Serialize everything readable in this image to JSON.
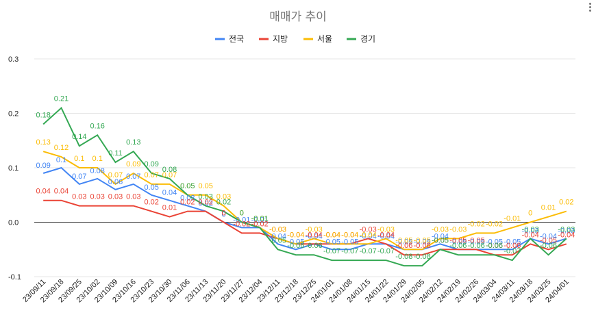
{
  "menu_icon": "more-vert-icon",
  "chart_data": {
    "type": "line",
    "title": "매매가 추이",
    "legend_position": "top",
    "grid": true,
    "ylim": [
      -0.1,
      0.3
    ],
    "yticks": [
      "0.3",
      "0.2",
      "0.1",
      "0.0",
      "-0.1"
    ],
    "ytick_values": [
      0.3,
      0.2,
      0.1,
      0.0,
      -0.1
    ],
    "categories": [
      "23/09/11",
      "23/09/18",
      "23/09/25",
      "23/10/02",
      "23/10/09",
      "23/10/16",
      "23/10/23",
      "23/10/30",
      "23/11/06",
      "23/11/13",
      "23/11/20",
      "23/11/27",
      "23/12/04",
      "23/12/11",
      "23/12/18",
      "23/12/25",
      "24/01/01",
      "24/01/08",
      "24/01/15",
      "24/01/22",
      "24/01/29",
      "24/02/05",
      "24/02/12",
      "24/02/19",
      "24/02/26",
      "24/03/04",
      "24/03/11",
      "24/03/18",
      "24/03/25",
      "24/04/01"
    ],
    "series": [
      {
        "name": "전국",
        "color": "#4285f4",
        "values": [
          0.09,
          0.1,
          0.07,
          0.08,
          0.06,
          0.07,
          0.05,
          0.04,
          0.03,
          0.02,
          0,
          -0.01,
          -0.01,
          -0.04,
          -0.05,
          -0.04,
          -0.05,
          -0.05,
          -0.04,
          -0.04,
          -0.05,
          -0.05,
          -0.04,
          -0.05,
          -0.05,
          -0.05,
          -0.05,
          -0.03,
          -0.04,
          -0.03
        ],
        "labels": [
          "0.09",
          "0.1",
          "0.07",
          "0.08",
          "0.06",
          "0.07",
          "0.05",
          "0.04",
          "0.03",
          "0.02",
          "0",
          "-0.01",
          "-0.01",
          "-0.04",
          "-0.05",
          "-0.04",
          "-0.05",
          "-0.05",
          "-0.04",
          "-0.04",
          "-0.05",
          "-0.05",
          "-0.04",
          "-0.05",
          "-0.05",
          "-0.05",
          "-0.05",
          "-0.03",
          "-0.04",
          "-0.03"
        ]
      },
      {
        "name": "지방",
        "color": "#ea4335",
        "values": [
          0.04,
          0.04,
          0.03,
          0.03,
          0.03,
          0.03,
          0.02,
          0.01,
          0.02,
          0.02,
          0,
          -0.02,
          -0.02,
          -0.03,
          -0.04,
          -0.04,
          -0.04,
          -0.04,
          -0.03,
          -0.04,
          -0.06,
          -0.06,
          -0.05,
          -0.05,
          -0.05,
          -0.06,
          -0.06,
          -0.04,
          -0.05,
          -0.04
        ],
        "labels": [
          "0.04",
          "0.04",
          "0.03",
          "0.03",
          "0.03",
          "0.03",
          "0.02",
          "0.01",
          "0.02",
          "0.02",
          "0",
          "-0.02",
          "-0.02",
          "-0.03",
          "-0.04",
          "-0.04",
          "-0.04",
          "-0.04",
          "-0.03",
          "-0.04",
          "-0.06",
          "-0.06",
          "-0.05",
          "-0.05",
          "-0.05",
          "-0.06",
          "-0.06",
          "-0.04",
          "-0.05",
          "-0.04"
        ]
      },
      {
        "name": "서울",
        "color": "#fbbc04",
        "values": [
          0.13,
          0.12,
          0.1,
          0.1,
          0.07,
          0.09,
          0.07,
          0.07,
          0.05,
          0.05,
          0.03,
          0,
          -0.01,
          -0.03,
          -0.04,
          -0.03,
          -0.04,
          -0.04,
          -0.04,
          -0.03,
          -0.05,
          -0.05,
          -0.03,
          -0.03,
          -0.02,
          -0.02,
          -0.01,
          0,
          0.01,
          0.02
        ],
        "labels": [
          "0.13",
          "0.12",
          "0.1",
          "0.1",
          "0.07",
          "0.09",
          "0.07",
          "0.07",
          "0.05",
          "0.05",
          "0.03",
          "0",
          "-0.01",
          "-0.03",
          "-0.04",
          "-0.03",
          "-0.04",
          "-0.04",
          "-0.04",
          "-0.03",
          "-0.05",
          "-0.05",
          "-0.03",
          "-0.03",
          "-0.02",
          "-0.02",
          "-0.01",
          "0",
          "0.01",
          "0.02"
        ]
      },
      {
        "name": "경기",
        "color": "#34a853",
        "values": [
          0.18,
          0.21,
          0.14,
          0.16,
          0.11,
          0.13,
          0.09,
          0.08,
          0.05,
          0.03,
          0.02,
          0,
          -0.01,
          -0.05,
          -0.06,
          -0.06,
          -0.07,
          -0.07,
          -0.07,
          -0.07,
          -0.08,
          -0.08,
          -0.05,
          -0.06,
          -0.06,
          -0.06,
          -0.07,
          -0.03,
          -0.06,
          -0.03
        ],
        "labels": [
          "0.18",
          "0.21",
          "0.14",
          "0.16",
          "0.11",
          "0.13",
          "0.09",
          "0.08",
          "0.05",
          "0.03",
          "0.02",
          "0",
          "-0.01",
          "-0.05",
          "-0.06",
          "-0.06",
          "-0.07",
          "-0.07",
          "-0.07",
          "-0.07",
          "-0.08",
          "-0.08",
          "-0.05",
          "-0.06",
          "-0.06",
          "-0.06",
          "-0.07",
          "-0.03",
          "-0.06",
          "-0.03"
        ]
      }
    ]
  }
}
